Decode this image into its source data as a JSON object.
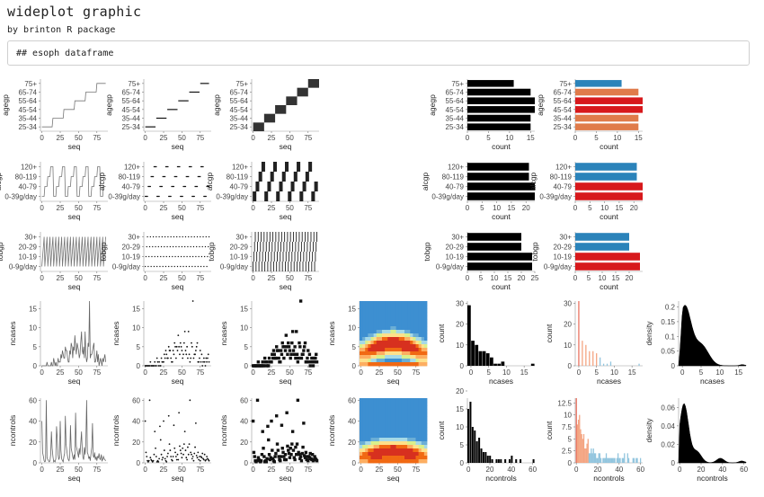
{
  "page": {
    "title": "wideplot graphic",
    "subtitle": "by brinton R package",
    "code_text": "## esoph dataframe"
  },
  "chart_data": [
    {
      "type": "line",
      "row": "agegp",
      "panel": "line",
      "ylabel": "agegp",
      "xlabel": "seq",
      "xticks": [
        0,
        25,
        50,
        75
      ],
      "yticks": [
        "25-34",
        "35-44",
        "45-54",
        "55-64",
        "65-74",
        "75+"
      ]
    },
    {
      "type": "line",
      "row": "agegp",
      "panel": "stripe",
      "ylabel": "agegp",
      "xlabel": "seq",
      "xticks": [
        0,
        25,
        50,
        75
      ],
      "yticks": [
        "25-34",
        "35-44",
        "45-54",
        "55-64",
        "65-74",
        "75+"
      ]
    },
    {
      "type": "heatmap",
      "row": "agegp",
      "panel": "tile",
      "ylabel": "agegp",
      "xlabel": "seq",
      "xticks": [
        0,
        25,
        50,
        75
      ],
      "yticks": [
        "25-34",
        "35-44",
        "45-54",
        "55-64",
        "65-74",
        "75+"
      ]
    },
    {
      "type": "bar",
      "row": "agegp",
      "panel": "bars",
      "ylabel": "agegp",
      "xlabel": "count",
      "categories": [
        "25-34",
        "35-44",
        "45-54",
        "55-64",
        "65-74",
        "75+"
      ],
      "values": [
        15,
        15,
        16,
        16,
        15,
        11
      ],
      "xticks": [
        0,
        5,
        10,
        15
      ],
      "xlim": [
        0,
        16
      ]
    },
    {
      "type": "bar",
      "row": "agegp",
      "panel": "colbars",
      "ylabel": "agegp",
      "xlabel": "count",
      "categories": [
        "25-34",
        "35-44",
        "45-54",
        "55-64",
        "65-74",
        "75+"
      ],
      "values": [
        15,
        15,
        16,
        16,
        15,
        11
      ],
      "colors": [
        "#e07b4a",
        "#e07b4a",
        "#d7191c",
        "#d7191c",
        "#e07b4a",
        "#2b83ba"
      ],
      "xticks": [
        0,
        5,
        10,
        15
      ],
      "xlim": [
        0,
        16
      ]
    },
    {
      "type": "line",
      "row": "alcgp",
      "panel": "line",
      "ylabel": "alcgp",
      "xlabel": "seq",
      "xticks": [
        0,
        25,
        50,
        75
      ],
      "yticks": [
        "0-39g/day",
        "40-79",
        "80-119",
        "120+"
      ]
    },
    {
      "type": "line",
      "row": "alcgp",
      "panel": "stripe",
      "ylabel": "alcgp",
      "xlabel": "seq",
      "xticks": [
        0,
        25,
        50,
        75
      ],
      "yticks": [
        "0-39g/day",
        "40-79",
        "80-119",
        "120+"
      ]
    },
    {
      "type": "heatmap",
      "row": "alcgp",
      "panel": "tile",
      "ylabel": "alcgp",
      "xlabel": "seq",
      "xticks": [
        0,
        25,
        50,
        75
      ],
      "yticks": [
        "0-39g/day",
        "40-79",
        "80-119",
        "120+"
      ]
    },
    {
      "type": "bar",
      "row": "alcgp",
      "panel": "bars",
      "ylabel": "alcgp",
      "xlabel": "count",
      "categories": [
        "0-39g/day",
        "40-79",
        "80-119",
        "120+"
      ],
      "values": [
        23,
        23,
        21,
        21
      ],
      "xticks": [
        0,
        5,
        10,
        15,
        20
      ],
      "xlim": [
        0,
        23
      ]
    },
    {
      "type": "bar",
      "row": "alcgp",
      "panel": "colbars",
      "ylabel": "alcgp",
      "xlabel": "count",
      "categories": [
        "0-39g/day",
        "40-79",
        "80-119",
        "120+"
      ],
      "values": [
        23,
        23,
        21,
        21
      ],
      "colors": [
        "#d7191c",
        "#d7191c",
        "#2b83ba",
        "#2b83ba"
      ],
      "xticks": [
        0,
        5,
        10,
        15,
        20
      ],
      "xlim": [
        0,
        23
      ]
    },
    {
      "type": "line",
      "row": "tobgp",
      "panel": "line",
      "ylabel": "tobgp",
      "xlabel": "seq",
      "xticks": [
        0,
        25,
        50,
        75
      ],
      "yticks": [
        "0-9g/day",
        "10-19",
        "20-29",
        "30+"
      ]
    },
    {
      "type": "line",
      "row": "tobgp",
      "panel": "stripe",
      "ylabel": "tobgp",
      "xlabel": "seq",
      "xticks": [
        0,
        25,
        50,
        75
      ],
      "yticks": [
        "0-9g/day",
        "10-19",
        "20-29",
        "30+"
      ]
    },
    {
      "type": "heatmap",
      "row": "tobgp",
      "panel": "tile",
      "ylabel": "tobgp",
      "xlabel": "seq",
      "xticks": [
        0,
        25,
        50,
        75
      ],
      "yticks": [
        "0-9g/day",
        "10-19",
        "20-29",
        "30+"
      ]
    },
    {
      "type": "bar",
      "row": "tobgp",
      "panel": "bars",
      "ylabel": "tobgp",
      "xlabel": "count",
      "categories": [
        "0-9g/day",
        "10-19",
        "20-29",
        "30+"
      ],
      "values": [
        24,
        24,
        20,
        20
      ],
      "xticks": [
        0,
        5,
        10,
        15,
        20,
        25
      ],
      "xlim": [
        0,
        25
      ]
    },
    {
      "type": "bar",
      "row": "tobgp",
      "panel": "colbars",
      "ylabel": "tobgp",
      "xlabel": "count",
      "categories": [
        "0-9g/day",
        "10-19",
        "20-29",
        "30+"
      ],
      "values": [
        24,
        24,
        20,
        20
      ],
      "colors": [
        "#d7191c",
        "#d7191c",
        "#2b83ba",
        "#2b83ba"
      ],
      "xticks": [
        0,
        5,
        10,
        15,
        20
      ],
      "xlim": [
        0,
        25
      ]
    },
    {
      "type": "line",
      "row": "ncases",
      "panel": "line",
      "ylabel": "ncases",
      "xlabel": "seq",
      "xticks": [
        0,
        25,
        50,
        75
      ],
      "yticks": [
        0,
        5,
        10,
        15
      ],
      "ylim": [
        0,
        17
      ],
      "y": [
        0,
        0,
        0,
        0,
        0,
        0,
        0,
        1,
        0,
        0,
        0,
        0,
        0,
        1,
        0,
        0,
        2,
        1,
        0,
        1,
        0,
        0,
        2,
        1,
        1,
        1,
        3,
        2,
        4,
        3,
        2,
        2,
        5,
        4,
        4,
        2,
        1,
        1,
        4,
        3,
        6,
        5,
        2,
        5,
        4,
        8,
        5,
        3,
        6,
        5,
        4,
        2,
        3,
        6,
        9,
        4,
        3,
        5,
        2,
        9,
        3,
        1,
        2,
        6,
        5,
        17,
        2,
        3,
        3,
        4,
        5,
        6,
        1,
        1,
        2,
        4,
        1,
        3,
        0,
        1,
        2,
        1,
        0,
        2,
        1,
        2,
        3,
        1
      ]
    },
    {
      "type": "scatter",
      "row": "ncases",
      "panel": "points",
      "ylabel": "ncases",
      "xlabel": "seq",
      "xticks": [
        0,
        25,
        50,
        75
      ],
      "yticks": [
        0,
        5,
        10,
        15
      ],
      "ylim": [
        0,
        17
      ]
    },
    {
      "type": "scatter",
      "row": "ncases",
      "panel": "squares",
      "ylabel": "ncases",
      "xlabel": "seq",
      "xticks": [
        0,
        25,
        50,
        75
      ],
      "yticks": [
        0,
        5,
        10,
        15
      ],
      "ylim": [
        0,
        17
      ]
    },
    {
      "type": "heatmap",
      "row": "ncases",
      "panel": "density2d",
      "ylabel": "ncases",
      "xlabel": "seq",
      "xticks": [
        0,
        25,
        50,
        75
      ],
      "yticks": [
        0,
        5,
        10,
        15
      ],
      "ylim": [
        0,
        17
      ]
    },
    {
      "type": "bar",
      "row": "ncases",
      "panel": "histogram",
      "ylabel": "count",
      "xlabel": "ncases",
      "categories": [
        0,
        1,
        2,
        3,
        4,
        5,
        6,
        7,
        8,
        9,
        10,
        11,
        12,
        13,
        14,
        15,
        16,
        17
      ],
      "values": [
        29,
        12,
        10,
        7,
        7,
        6,
        4,
        1,
        1,
        2,
        0,
        0,
        0,
        0,
        0,
        0,
        0,
        1
      ],
      "xticks": [
        0,
        5,
        10,
        15
      ],
      "yticks": [
        0,
        10,
        20,
        30
      ]
    },
    {
      "type": "bar",
      "row": "ncases",
      "panel": "spikes",
      "ylabel": "count",
      "xlabel": "ncases",
      "xticks": [
        0,
        5,
        10,
        15
      ],
      "yticks": [
        0,
        10,
        20,
        30
      ]
    },
    {
      "type": "area",
      "row": "ncases",
      "panel": "density",
      "ylabel": "density",
      "xlabel": "ncases",
      "xticks": [
        0,
        5,
        10,
        15
      ],
      "yticks": [
        0.0,
        0.05,
        0.1,
        0.15,
        0.2
      ],
      "ylim": [
        0,
        0.22
      ]
    },
    {
      "type": "line",
      "row": "ncontrols",
      "panel": "line",
      "ylabel": "ncontrols",
      "xlabel": "seq",
      "xticks": [
        0,
        25,
        50,
        75
      ],
      "yticks": [
        0,
        20,
        40,
        60
      ],
      "ylim": [
        0,
        62
      ],
      "y": [
        40,
        10,
        6,
        2,
        1,
        2,
        60,
        5,
        3,
        2,
        1,
        2,
        8,
        30,
        14,
        6,
        1,
        2,
        1,
        4,
        35,
        22,
        8,
        3,
        5,
        40,
        12,
        4,
        2,
        1,
        6,
        9,
        45,
        18,
        12,
        6,
        3,
        2,
        6,
        36,
        14,
        10,
        6,
        3,
        8,
        3,
        48,
        16,
        12,
        9,
        5,
        14,
        8,
        18,
        30,
        12,
        5,
        3,
        15,
        8,
        18,
        60,
        10,
        8,
        4,
        6,
        2,
        9,
        15,
        38,
        7,
        5,
        10,
        3,
        6,
        2,
        6,
        5,
        9,
        4,
        3,
        8,
        2,
        3,
        6,
        4,
        3,
        2
      ]
    },
    {
      "type": "scatter",
      "row": "ncontrols",
      "panel": "points",
      "ylabel": "ncontrols",
      "xlabel": "seq",
      "xticks": [
        0,
        25,
        50,
        75
      ],
      "yticks": [
        0,
        20,
        40,
        60
      ],
      "ylim": [
        0,
        62
      ]
    },
    {
      "type": "scatter",
      "row": "ncontrols",
      "panel": "squares",
      "ylabel": "ncontrols",
      "xlabel": "seq",
      "xticks": [
        0,
        25,
        50,
        75
      ],
      "yticks": [
        0,
        20,
        40,
        60
      ],
      "ylim": [
        0,
        62
      ]
    },
    {
      "type": "heatmap",
      "row": "ncontrols",
      "panel": "density2d",
      "ylabel": "ncontrols",
      "xlabel": "seq",
      "xticks": [
        0,
        25,
        50,
        75
      ],
      "yticks": [
        0,
        20,
        40,
        60
      ],
      "ylim": [
        0,
        62
      ]
    },
    {
      "type": "bar",
      "row": "ncontrols",
      "panel": "histogram",
      "ylabel": "count",
      "xlabel": "ncontrols",
      "categories": [
        0,
        2,
        4,
        6,
        8,
        10,
        12,
        14,
        16,
        18,
        20,
        22,
        24,
        26,
        28,
        30,
        32,
        34,
        36,
        38,
        40,
        42,
        44,
        46,
        48,
        50,
        52,
        54,
        56,
        58,
        60
      ],
      "values": [
        15,
        17,
        10,
        9,
        6,
        7,
        4,
        3,
        3,
        2,
        2,
        1,
        0,
        1,
        1,
        1,
        0,
        1,
        0,
        1,
        2,
        0,
        1,
        0,
        1,
        0,
        0,
        0,
        0,
        0,
        1
      ],
      "xticks": [
        0,
        20,
        40,
        60
      ],
      "yticks": [
        0,
        5,
        10,
        15,
        20
      ]
    },
    {
      "type": "bar",
      "row": "ncontrols",
      "panel": "spikes",
      "ylabel": "count",
      "xlabel": "ncontrols",
      "xticks": [
        0,
        20,
        40,
        60
      ],
      "yticks": [
        0.0,
        2.5,
        5.0,
        7.5,
        10.0,
        12.5
      ]
    },
    {
      "type": "area",
      "row": "ncontrols",
      "panel": "density",
      "ylabel": "density",
      "xlabel": "ncontrols",
      "xticks": [
        0,
        20,
        40,
        60
      ],
      "yticks": [
        0.0,
        0.02,
        0.04,
        0.06
      ],
      "ylim": [
        0,
        0.07
      ]
    }
  ]
}
